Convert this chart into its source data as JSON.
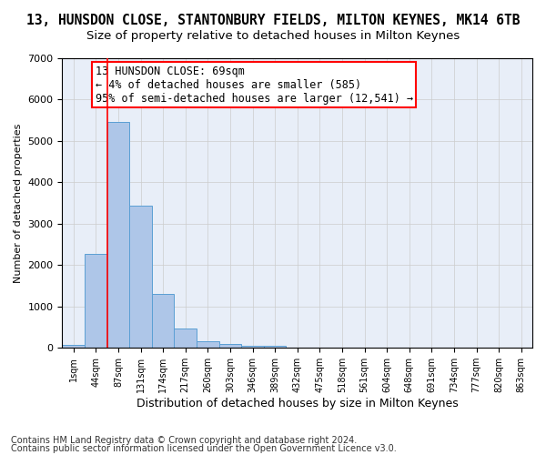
{
  "title_line1": "13, HUNSDON CLOSE, STANTONBURY FIELDS, MILTON KEYNES, MK14 6TB",
  "title_line2": "Size of property relative to detached houses in Milton Keynes",
  "xlabel": "Distribution of detached houses by size in Milton Keynes",
  "ylabel": "Number of detached properties",
  "bar_color": "#aec6e8",
  "bar_edge_color": "#5a9fd4",
  "background_color": "#e8eef8",
  "tick_labels": [
    "1sqm",
    "44sqm",
    "87sqm",
    "131sqm",
    "174sqm",
    "217sqm",
    "260sqm",
    "303sqm",
    "346sqm",
    "389sqm",
    "432sqm",
    "475sqm",
    "518sqm",
    "561sqm",
    "604sqm",
    "648sqm",
    "691sqm",
    "734sqm",
    "777sqm",
    "820sqm",
    "863sqm"
  ],
  "bar_values": [
    80,
    2280,
    5470,
    3440,
    1310,
    470,
    165,
    90,
    55,
    40,
    5,
    0,
    0,
    0,
    0,
    0,
    0,
    0,
    0,
    0,
    0
  ],
  "ylim": [
    0,
    7000
  ],
  "yticks": [
    0,
    1000,
    2000,
    3000,
    4000,
    5000,
    6000,
    7000
  ],
  "red_line_x": 1.5,
  "annotation_box_text": "13 HUNSDON CLOSE: 69sqm\n← 4% of detached houses are smaller (585)\n95% of semi-detached houses are larger (12,541) →",
  "footer_line1": "Contains HM Land Registry data © Crown copyright and database right 2024.",
  "footer_line2": "Contains public sector information licensed under the Open Government Licence v3.0.",
  "grid_color": "#cccccc",
  "title_fontsize": 10.5,
  "subtitle_fontsize": 9.5,
  "annot_fontsize": 8.5,
  "footer_fontsize": 7.0
}
